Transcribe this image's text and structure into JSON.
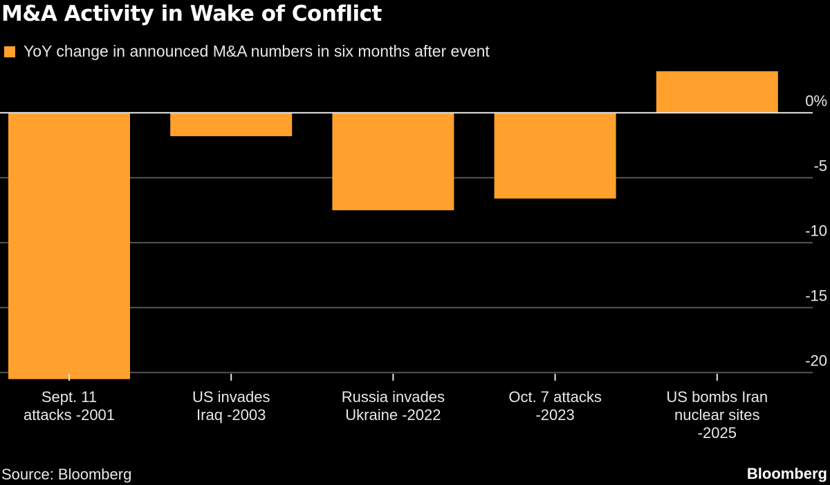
{
  "chart_data": {
    "type": "bar",
    "title": "M&A Activity in Wake of Conflict",
    "legend": {
      "position": "top-left",
      "entries": [
        "YoY change in announced M&A numbers in six months after event"
      ]
    },
    "categories": [
      [
        "Sept. 11",
        "attacks -2001"
      ],
      [
        "US invades",
        "Iraq -2003"
      ],
      [
        "Russia invades",
        "Ukraine -2022"
      ],
      [
        "Oct. 7 attacks",
        "-2023"
      ],
      [
        "US bombs Iran",
        "nuclear sites",
        "-2025"
      ]
    ],
    "series": [
      {
        "name": "YoY change in announced M&A numbers in six months after event",
        "values": [
          -20.5,
          -1.8,
          -7.5,
          -6.6,
          3.2
        ],
        "color": "#ffa12c"
      }
    ],
    "ylim": [
      -20.5,
      3.2
    ],
    "yticks": [
      0,
      -5,
      -10,
      -15,
      -20
    ],
    "ytick_labels": [
      "0%",
      "-5",
      "-10",
      "-15",
      "-20"
    ],
    "y_axis_position": "right",
    "grid": true,
    "xlabel": "",
    "ylabel": ""
  },
  "footer": {
    "source": "Source: Bloomberg",
    "brand": "Bloomberg"
  },
  "colors": {
    "background": "#000000",
    "bar": "#ffa12c",
    "grid": "#555555",
    "zero_line": "#e8e8e8"
  }
}
